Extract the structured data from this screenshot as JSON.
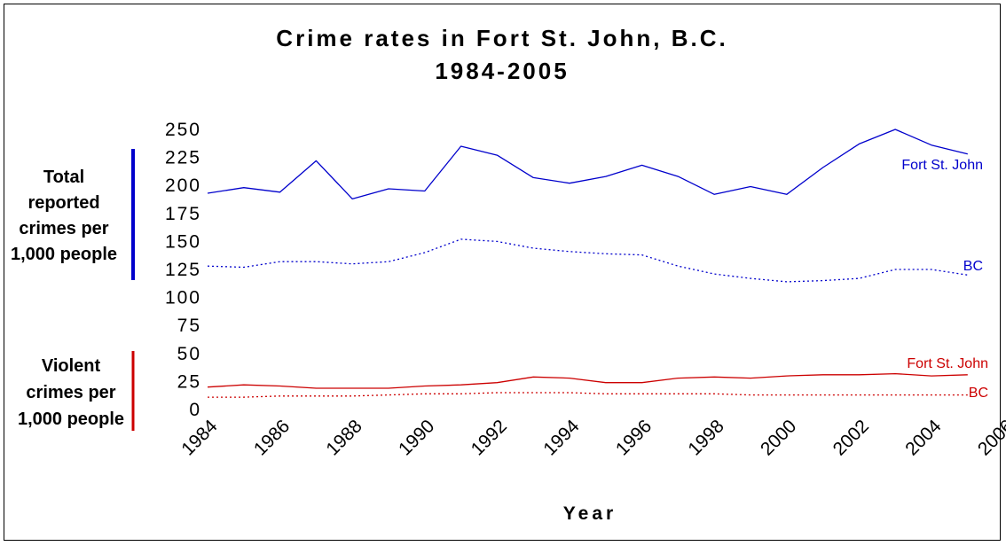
{
  "chart_data": {
    "type": "line",
    "title": [
      "Crime rates in Fort St. John, B.C.",
      "1984-2005"
    ],
    "xlabel": "Year",
    "y_groups": [
      {
        "label": [
          "Total",
          "reported",
          "crimes per",
          "1,000 people"
        ],
        "color": "#0000cc",
        "range": [
          115,
          250
        ]
      },
      {
        "label": [
          "Violent",
          "crimes per",
          "1,000 people"
        ],
        "color": "#cc0000",
        "range": [
          0,
          50
        ]
      }
    ],
    "yticks": [
      250,
      225,
      200,
      175,
      150,
      125,
      100,
      75,
      50,
      25,
      0
    ],
    "ylim": [
      0,
      250
    ],
    "xticks": [
      "1984",
      "1986",
      "1988",
      "1990",
      "1992",
      "1994",
      "1996",
      "1998",
      "2000",
      "2002",
      "2004",
      "2006"
    ],
    "x": [
      1984,
      1985,
      1986,
      1987,
      1988,
      1989,
      1990,
      1991,
      1992,
      1993,
      1994,
      1995,
      1996,
      1997,
      1998,
      1999,
      2000,
      2001,
      2002,
      2003,
      2004,
      2005
    ],
    "series": [
      {
        "name": "Fort St. John",
        "group": "total",
        "color": "#0000cc",
        "style": "solid",
        "values": [
          193,
          198,
          194,
          222,
          188,
          197,
          195,
          235,
          227,
          207,
          202,
          208,
          218,
          208,
          192,
          199,
          192,
          216,
          237,
          250,
          236,
          228
        ]
      },
      {
        "name": "BC",
        "group": "total",
        "color": "#0000cc",
        "style": "dotted",
        "values": [
          128,
          127,
          132,
          132,
          130,
          132,
          140,
          152,
          150,
          144,
          141,
          139,
          138,
          128,
          121,
          117,
          114,
          115,
          117,
          125,
          125,
          120
        ]
      },
      {
        "name": "Fort St. John",
        "group": "violent",
        "color": "#cc0000",
        "style": "solid",
        "values": [
          20,
          22,
          21,
          19,
          19,
          19,
          21,
          22,
          24,
          29,
          28,
          24,
          24,
          28,
          29,
          28,
          30,
          31,
          31,
          32,
          30,
          31
        ]
      },
      {
        "name": "BC",
        "group": "violent",
        "color": "#cc0000",
        "style": "dotted",
        "values": [
          11,
          11,
          12,
          12,
          12,
          13,
          14,
          14,
          15,
          15,
          15,
          14,
          14,
          14,
          14,
          13,
          13,
          13,
          13,
          13,
          13,
          13
        ]
      }
    ]
  }
}
